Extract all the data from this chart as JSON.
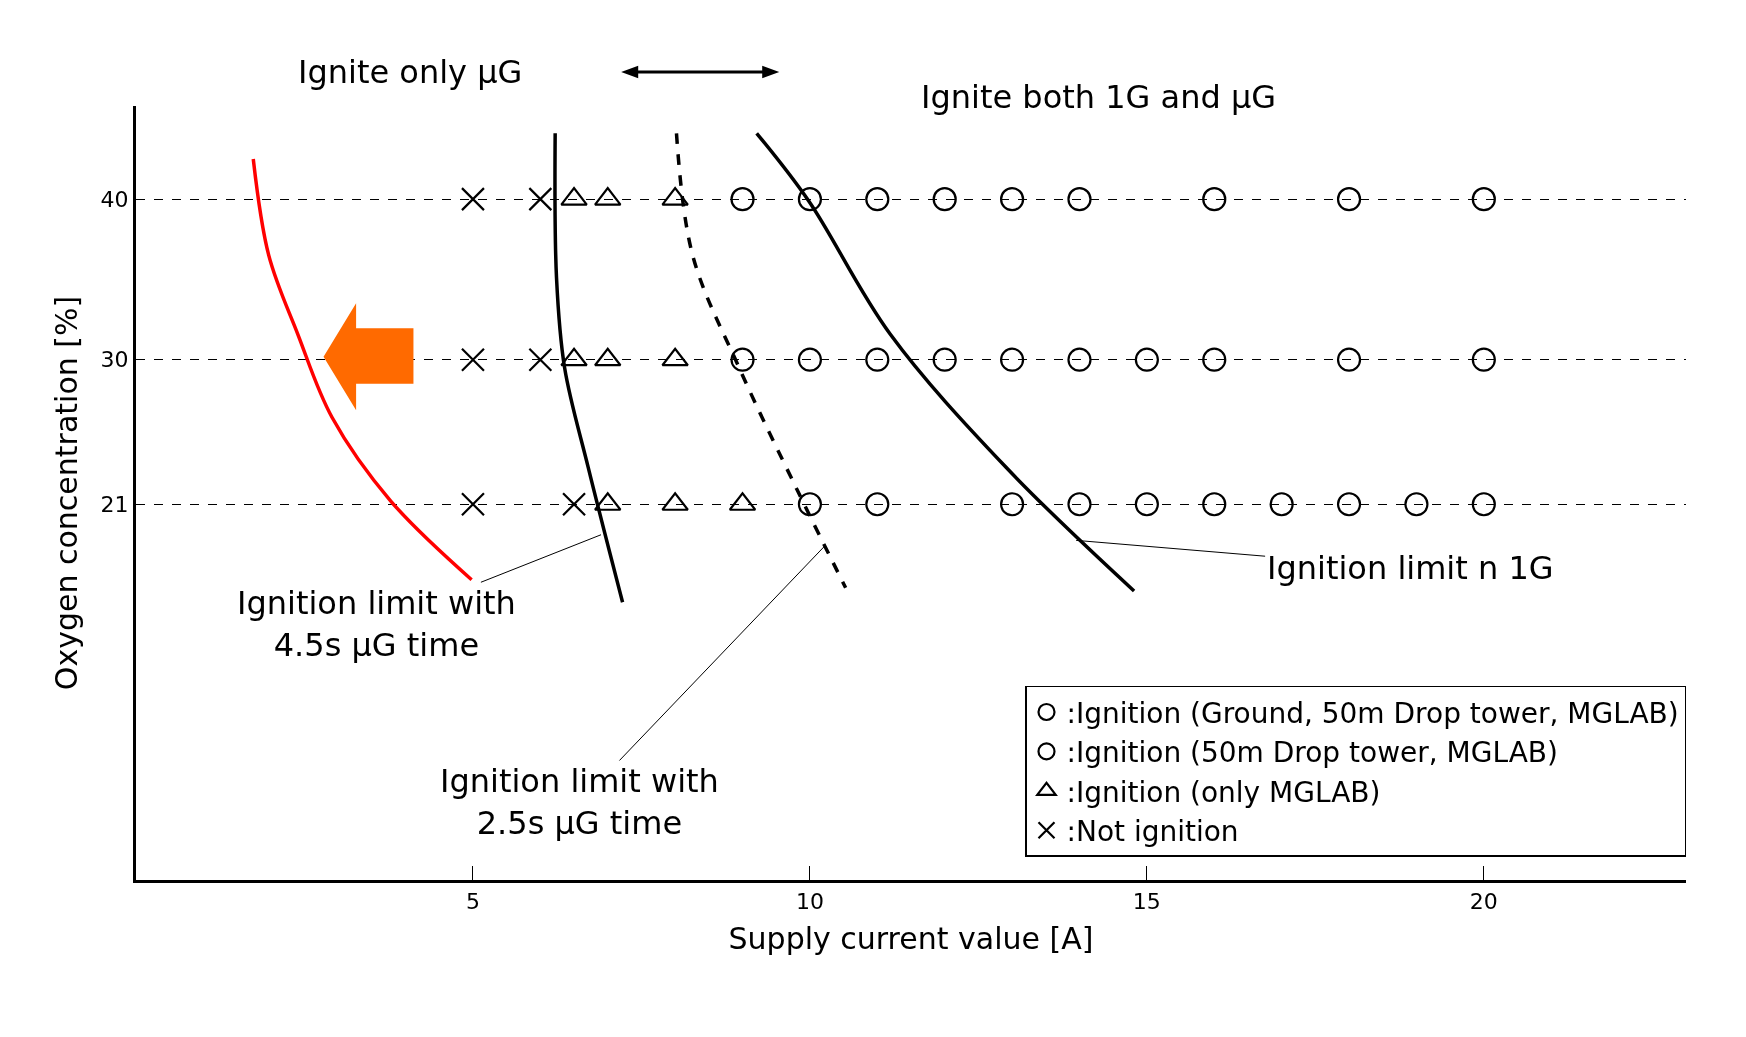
{
  "chart_data": {
    "type": "scatter",
    "xlabel": "Supply current value [A]",
    "ylabel": "Oxygen concentration [%]",
    "xlim": [
      0,
      23
    ],
    "ylim": [
      -2.4,
      45.8
    ],
    "xticks": [
      5,
      10,
      15,
      20
    ],
    "yticks": [
      21,
      30,
      40
    ],
    "grid": "y",
    "legend": "bottom right",
    "series": [
      {
        "name": ":Ignition (Ground, 50m Drop tower, MGLAB)",
        "color": "#000000",
        "marker": "circle",
        "x": [
          10,
          11,
          12,
          13,
          14,
          16,
          18,
          20,
          12,
          13,
          14,
          15,
          16,
          18,
          20,
          14,
          15,
          16,
          17,
          18,
          19,
          20
        ],
        "values": [
          40,
          40,
          40,
          40,
          40,
          40,
          40,
          40,
          30,
          30,
          30,
          30,
          30,
          30,
          30,
          21,
          21,
          21,
          21,
          21,
          21,
          21
        ]
      },
      {
        "name": ":Ignition (50m Drop tower, MGLAB)",
        "color": "#000000",
        "marker": "circle",
        "x": [
          9,
          9,
          10,
          11,
          10,
          11,
          13
        ],
        "values": [
          40,
          30,
          30,
          30,
          21,
          21,
          21
        ]
      },
      {
        "name": ":Ignition (only MGLAB)",
        "color": "#000000",
        "marker": "triangle",
        "x": [
          6.5,
          7,
          8,
          6.5,
          7,
          8,
          7,
          8,
          9
        ],
        "values": [
          40,
          40,
          40,
          30,
          30,
          30,
          21,
          21,
          21
        ]
      },
      {
        "name": ":Not ignition",
        "color": "#000000",
        "marker": "cross",
        "x": [
          5,
          6,
          5,
          6,
          5,
          6.5
        ],
        "values": [
          40,
          40,
          30,
          30,
          21,
          21
        ]
      },
      {
        "type": "line",
        "color": "#ff0000",
        "line_style": "solid",
        "x": [
          1.74,
          1.97,
          2.4,
          2.91,
          3.78,
          4.98
        ],
        "values": [
          42.5,
          36.5,
          31.6,
          26.4,
          21.2,
          16.3
        ]
      },
      {
        "type": "line",
        "color": "#000000",
        "line_style": "solid",
        "x": [
          6.22,
          6.24,
          6.36,
          6.71,
          7.22
        ],
        "values": [
          44.1,
          35.1,
          29.5,
          23.3,
          14.9
        ]
      },
      {
        "type": "line",
        "color": "#000000",
        "line_style": "dashed",
        "x": [
          8.02,
          8.26,
          8.95,
          9.81,
          10.53
        ],
        "values": [
          44.1,
          36.5,
          29.5,
          21.9,
          15.8
        ]
      },
      {
        "type": "line",
        "color": "#000000",
        "line_style": "solid",
        "x": [
          9.21,
          9.98,
          11.19,
          12.91,
          14.81
        ],
        "values": [
          44.1,
          39.9,
          31.6,
          23.3,
          15.6
        ]
      }
    ],
    "annotations": [
      "Ignite only μG",
      "Ignite both 1G and μG",
      {
        "text": "Ignition limit with\n4.5s μG time",
        "x": 6.9,
        "y": 19.1
      },
      {
        "text": "Ignition limit with\n2.5s μG time",
        "x": 10.22,
        "y": 18.4
      },
      {
        "text": "Ignition limit n 1G",
        "x": 13.95,
        "y": 18.75
      }
    ]
  }
}
